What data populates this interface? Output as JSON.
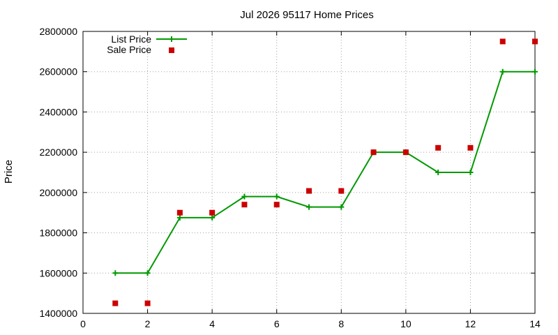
{
  "chart_data": {
    "type": "line",
    "title": "Jul 2026 95117 Home Prices",
    "xlabel": "",
    "ylabel": "Price",
    "xlim": [
      0,
      14
    ],
    "ylim": [
      1400000,
      2800000
    ],
    "x_ticks": [
      0,
      2,
      4,
      6,
      8,
      10,
      12,
      14
    ],
    "y_ticks": [
      1400000,
      1600000,
      1800000,
      2000000,
      2200000,
      2400000,
      2600000,
      2800000
    ],
    "grid": true,
    "legend_position": "top-left",
    "series": [
      {
        "name": "List Price",
        "style": "line-plus",
        "color": "#009900",
        "x": [
          1,
          2,
          3,
          4,
          5,
          6,
          7,
          8,
          9,
          10,
          11,
          12,
          13,
          14
        ],
        "y": [
          1600000,
          1600000,
          1875000,
          1875000,
          1980000,
          1980000,
          1928000,
          1928000,
          2200000,
          2200000,
          2100000,
          2100000,
          2600000,
          2600000
        ]
      },
      {
        "name": "Sale Price",
        "style": "square-points",
        "color": "#cc0000",
        "x": [
          1,
          2,
          3,
          4,
          5,
          6,
          7,
          8,
          9,
          10,
          11,
          12,
          13,
          14
        ],
        "y": [
          1450000,
          1450000,
          1900000,
          1900000,
          1940000,
          1940000,
          2008000,
          2008000,
          2200000,
          2200000,
          2222000,
          2222000,
          2750000,
          2750000
        ]
      }
    ]
  }
}
